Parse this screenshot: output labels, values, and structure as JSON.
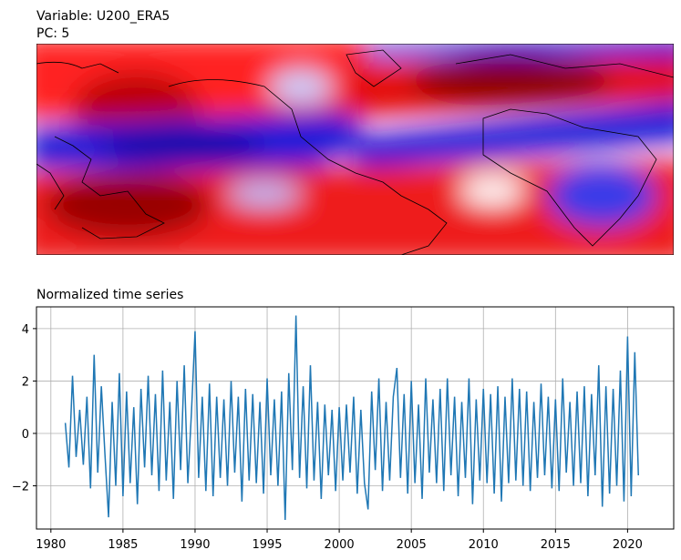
{
  "header": {
    "variable": "Variable: U200_ERA5",
    "pc": "PC: 5"
  },
  "chart_data": {
    "type": "line",
    "title": "Normalized time series",
    "x": [
      1981,
      1981.25,
      1981.5,
      1981.75,
      1982,
      1982.25,
      1982.5,
      1982.75,
      1983,
      1983.25,
      1983.5,
      1983.75,
      1984,
      1984.25,
      1984.5,
      1984.75,
      1985,
      1985.25,
      1985.5,
      1985.75,
      1986,
      1986.25,
      1986.5,
      1986.75,
      1987,
      1987.25,
      1987.5,
      1987.75,
      1988,
      1988.25,
      1988.5,
      1988.75,
      1989,
      1989.25,
      1989.5,
      1989.75,
      1990,
      1990.25,
      1990.5,
      1990.75,
      1991,
      1991.25,
      1991.5,
      1991.75,
      1992,
      1992.25,
      1992.5,
      1992.75,
      1993,
      1993.25,
      1993.5,
      1993.75,
      1994,
      1994.25,
      1994.5,
      1994.75,
      1995,
      1995.25,
      1995.5,
      1995.75,
      1996,
      1996.25,
      1996.5,
      1996.75,
      1997,
      1997.25,
      1997.5,
      1997.75,
      1998,
      1998.25,
      1998.5,
      1998.75,
      1999,
      1999.25,
      1999.5,
      1999.75,
      2000,
      2000.25,
      2000.5,
      2000.75,
      2001,
      2001.25,
      2001.5,
      2001.75,
      2002,
      2002.25,
      2002.5,
      2002.75,
      2003,
      2003.25,
      2003.5,
      2003.75,
      2004,
      2004.25,
      2004.5,
      2004.75,
      2005,
      2005.25,
      2005.5,
      2005.75,
      2006,
      2006.25,
      2006.5,
      2006.75,
      2007,
      2007.25,
      2007.5,
      2007.75,
      2008,
      2008.25,
      2008.5,
      2008.75,
      2009,
      2009.25,
      2009.5,
      2009.75,
      2010,
      2010.25,
      2010.5,
      2010.75,
      2011,
      2011.25,
      2011.5,
      2011.75,
      2012,
      2012.25,
      2012.5,
      2012.75,
      2013,
      2013.25,
      2013.5,
      2013.75,
      2014,
      2014.25,
      2014.5,
      2014.75,
      2015,
      2015.25,
      2015.5,
      2015.75,
      2016,
      2016.25,
      2016.5,
      2016.75,
      2017,
      2017.25,
      2017.5,
      2017.75,
      2018,
      2018.25,
      2018.5,
      2018.75,
      2019,
      2019.25,
      2019.5,
      2019.75,
      2020,
      2020.25,
      2020.5,
      2020.75
    ],
    "series": [
      {
        "color": "#1f77b4",
        "values": [
          0.4,
          -1.3,
          2.2,
          -0.9,
          0.9,
          -1.2,
          1.4,
          -2.1,
          3.0,
          -1.5,
          1.8,
          -0.8,
          -3.2,
          1.2,
          -2.0,
          2.3,
          -2.4,
          1.6,
          -1.9,
          1.0,
          -2.7,
          1.7,
          -1.3,
          2.2,
          -1.6,
          1.5,
          -2.2,
          2.4,
          -1.8,
          1.2,
          -2.5,
          2.0,
          -1.4,
          2.6,
          -1.9,
          0.8,
          3.9,
          -1.7,
          1.4,
          -2.2,
          1.9,
          -2.4,
          1.4,
          -1.7,
          1.3,
          -2.0,
          2.0,
          -1.5,
          1.4,
          -2.6,
          1.7,
          -1.8,
          1.5,
          -1.9,
          1.2,
          -2.3,
          2.1,
          -1.6,
          1.3,
          -2.0,
          1.6,
          -3.3,
          2.3,
          -1.4,
          4.5,
          -1.7,
          1.8,
          -2.1,
          2.6,
          -1.8,
          1.2,
          -2.5,
          1.1,
          -1.6,
          0.9,
          -2.2,
          1.0,
          -1.8,
          1.1,
          -1.5,
          1.4,
          -2.3,
          0.9,
          -1.9,
          -2.9,
          1.6,
          -1.4,
          2.1,
          -2.2,
          1.2,
          -1.8,
          1.4,
          2.5,
          -1.7,
          1.5,
          -2.3,
          2.0,
          -1.9,
          1.1,
          -2.5,
          2.1,
          -1.5,
          1.3,
          -1.9,
          1.7,
          -2.2,
          2.1,
          -1.6,
          1.4,
          -2.4,
          1.2,
          -1.7,
          2.1,
          -2.7,
          1.3,
          -1.8,
          1.7,
          -1.9,
          1.5,
          -2.3,
          1.8,
          -2.6,
          1.4,
          -1.9,
          2.1,
          -1.8,
          1.7,
          -2.0,
          1.6,
          -2.2,
          1.2,
          -1.7,
          1.9,
          -1.6,
          1.4,
          -2.1,
          1.3,
          -2.2,
          2.1,
          -1.5,
          1.2,
          -2.0,
          1.6,
          -1.9,
          1.8,
          -2.4,
          1.5,
          -1.6,
          2.6,
          -2.8,
          1.8,
          -2.3,
          1.7,
          -2.0,
          2.4,
          -2.6,
          3.7,
          -2.4,
          3.1,
          -1.6
        ]
      }
    ],
    "xlim": [
      1979,
      2023.2
    ],
    "ylim": [
      -3.65,
      4.83
    ],
    "xticks": [
      1980,
      1985,
      1990,
      1995,
      2000,
      2005,
      2010,
      2015,
      2020
    ],
    "yticks": [
      {
        "value": -2,
        "label": "−2"
      },
      0,
      2,
      4
    ],
    "grid": true
  }
}
